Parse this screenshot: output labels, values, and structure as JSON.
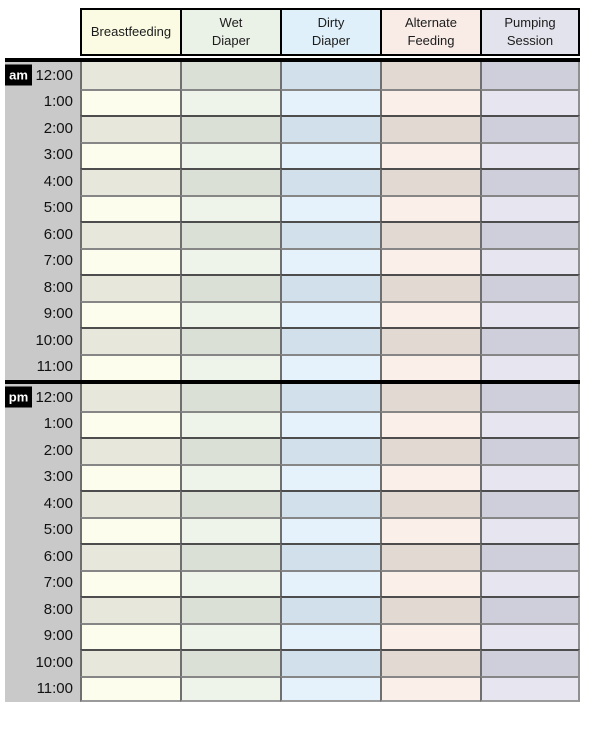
{
  "table": {
    "title": "daily-baby-tracking-log",
    "columns": [
      {
        "id": "breastfeeding",
        "label": "Breastfeeding",
        "header_bg": "#fbfbe3",
        "light": "#fdfdee",
        "dark": "#e7e7db"
      },
      {
        "id": "wet-diaper",
        "label": "Wet\nDiaper",
        "header_bg": "#eaf1e6",
        "light": "#eff4ea",
        "dark": "#dae0d5"
      },
      {
        "id": "dirty-diaper",
        "label": "Dirty\nDiaper",
        "header_bg": "#dff0fa",
        "light": "#e5f2fc",
        "dark": "#d1e0ea"
      },
      {
        "id": "alternate-feeding",
        "label": "Alternate\nFeeding",
        "header_bg": "#f9ece7",
        "light": "#faefe9",
        "dark": "#e2d9d3"
      },
      {
        "id": "pumping-session",
        "label": "Pumping\nSession",
        "header_bg": "#e3e3ed",
        "light": "#e7e6f0",
        "dark": "#cfcfdb"
      }
    ],
    "sections": [
      {
        "period": "am",
        "times": [
          "12:00",
          "1:00",
          "2:00",
          "3:00",
          "4:00",
          "5:00",
          "6:00",
          "7:00",
          "8:00",
          "9:00",
          "10:00",
          "11:00"
        ]
      },
      {
        "period": "pm",
        "times": [
          "12:00",
          "1:00",
          "2:00",
          "3:00",
          "4:00",
          "5:00",
          "6:00",
          "7:00",
          "8:00",
          "9:00",
          "10:00",
          "11:00"
        ]
      }
    ]
  },
  "colors": {
    "gutter": "#c9c9c9",
    "badge_bg": "#000000",
    "badge_text": "#ffffff",
    "separator": "#000000",
    "header_border": "#000000",
    "column_border": "#6f6f6f",
    "row_border_light": "#868686",
    "row_border_dark": "#4d4d4d",
    "bottom_border": "#9a9a9a"
  }
}
